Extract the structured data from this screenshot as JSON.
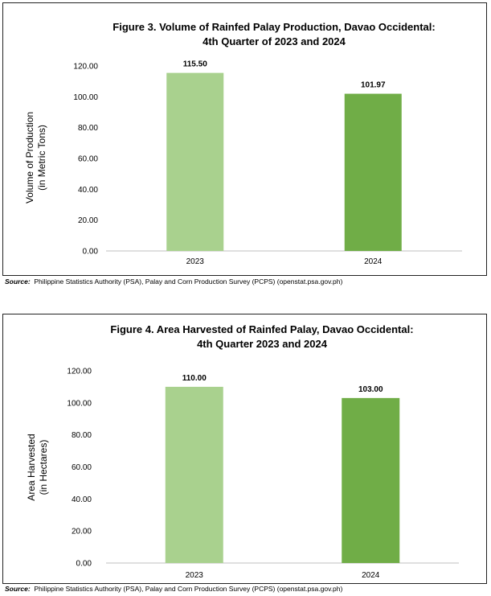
{
  "chart_data": [
    {
      "type": "bar",
      "title_line1": "Figure 3. Volume of Rainfed Palay Production, Davao Occidental:",
      "title_line2": "4th Quarter of 2023 and 2024",
      "ylabel_line1": "Volume of Production",
      "ylabel_line2": "(in Metric Tons)",
      "xlabel": "",
      "categories": [
        "2023",
        "2024"
      ],
      "values": [
        115.5,
        101.97
      ],
      "value_labels": [
        "115.50",
        "101.97"
      ],
      "bar_colors": [
        "#a9d18e",
        "#70ad47"
      ],
      "ylim": [
        0,
        120
      ],
      "yticks": [
        "0.00",
        "20.00",
        "40.00",
        "60.00",
        "80.00",
        "100.00",
        "120.00"
      ],
      "grid": false,
      "legend": "none"
    },
    {
      "type": "bar",
      "title_line1": "Figure 4. Area Harvested of Rainfed Palay, Davao Occidental:",
      "title_line2": "4th Quarter 2023 and 2024",
      "ylabel_line1": "Area Harvested",
      "ylabel_line2": "(in Hectares)",
      "xlabel": "",
      "categories": [
        "2023",
        "2024"
      ],
      "values": [
        110.0,
        103.0
      ],
      "value_labels": [
        "110.00",
        "103.00"
      ],
      "bar_colors": [
        "#a9d18e",
        "#70ad47"
      ],
      "ylim": [
        0,
        120
      ],
      "yticks": [
        "0.00",
        "20.00",
        "40.00",
        "60.00",
        "80.00",
        "100.00",
        "120.00"
      ],
      "grid": false,
      "legend": "none"
    }
  ],
  "sources": [
    {
      "key": "Source:",
      "text": "Philippine Statistics Authority (PSA), Palay and Corn Production Survey (PCPS) (openstat.psa.gov.ph)"
    },
    {
      "key": "Source:",
      "text": "Philippine Statistics Authority (PSA), Palay and Corn Production Survey (PCPS) (openstat.psa.gov.ph)"
    }
  ]
}
